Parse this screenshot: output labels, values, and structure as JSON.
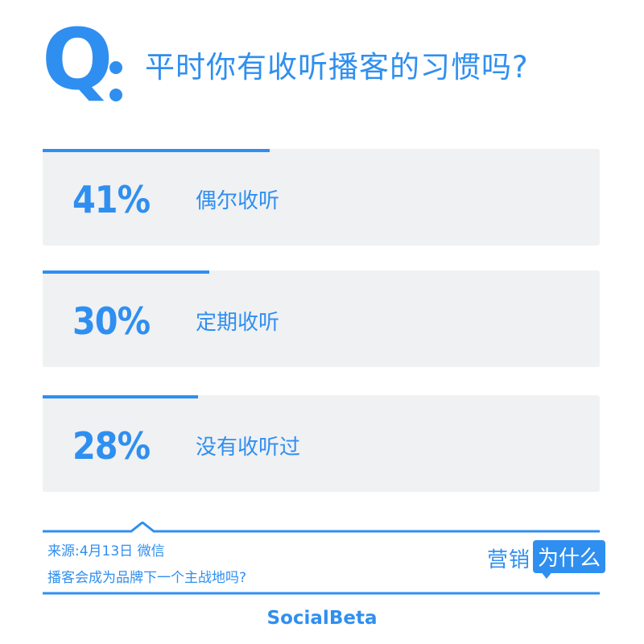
{
  "header": {
    "q_letter": "Q",
    "question": "平时你有收听播客的习惯吗?"
  },
  "chart_data": {
    "type": "bar",
    "title": "平时你有收听播客的习惯吗?",
    "categories": [
      "偶尔收听",
      "定期收听",
      "没有收听过"
    ],
    "values": [
      41,
      30,
      28
    ],
    "value_labels": [
      "41%",
      "30%",
      "28%"
    ],
    "unit": "%",
    "ylim": [
      0,
      100
    ]
  },
  "source": {
    "line1": "来源:4月13日 微信",
    "line2": "播客会成为品牌下一个主战地吗?"
  },
  "logo": {
    "part1": "营销",
    "part2": "为什么"
  },
  "footer": {
    "brand": "SocialBeta"
  },
  "colors": {
    "accent": "#2f8ff0",
    "card_bg": "#f0f1f3"
  }
}
